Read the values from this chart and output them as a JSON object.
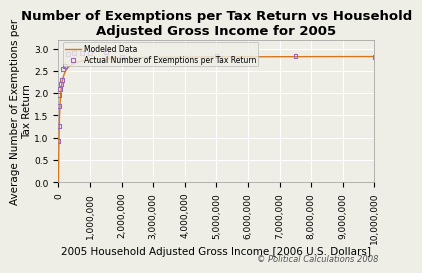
{
  "title": "Number of Exemptions per Tax Return vs Household\nAdjusted Gross Income for 2005",
  "xlabel": "2005 Household Adjusted Gross Income [2006 U.S. Dollars]",
  "ylabel": "Average Number of Exemptions per\nTax Return",
  "xlim": [
    0,
    10000000
  ],
  "ylim": [
    0.0,
    3.2
  ],
  "yticks": [
    0.0,
    0.5,
    1.0,
    1.5,
    2.0,
    2.5,
    3.0
  ],
  "background_color": "#eeeee6",
  "grid_color": "#ffffff",
  "line_color": "#d4781e",
  "scatter_color": "#9966bb",
  "title_fontsize": 9.5,
  "axis_label_fontsize": 7.5,
  "tick_fontsize": 6.5,
  "copyright": "© Political Calculations 2008",
  "legend_modeled": "Modeled Data",
  "legend_actual": "Actual Number of Exemptions per Tax Return",
  "actual_x": [
    1000,
    5000,
    10000,
    25000,
    50000,
    75000,
    100000,
    150000,
    200000,
    300000,
    500000,
    750000,
    1000000,
    1500000,
    2000000,
    5000000,
    7500000,
    10000000
  ],
  "actual_y": [
    0.92,
    1.27,
    1.72,
    1.95,
    2.1,
    2.21,
    2.3,
    2.55,
    2.6,
    2.88,
    2.9,
    2.91,
    2.9,
    2.92,
    2.82,
    2.83,
    2.83,
    2.82
  ],
  "michaelis_k": 30000,
  "model_max": 2.83
}
